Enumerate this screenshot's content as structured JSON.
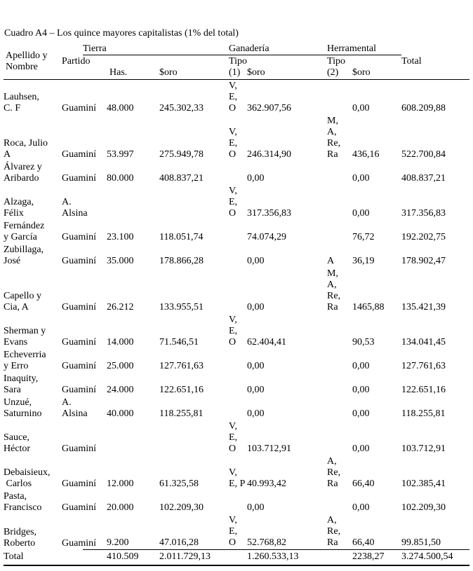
{
  "title": "Cuadro A4 – Los quince mayores capitalistas (1% del total)",
  "header": {
    "name": "Apellido y\nNombre",
    "partido": "Partido",
    "groups": [
      {
        "label": "Tierra",
        "sub": [
          "Has.",
          "$oro"
        ]
      },
      {
        "label": "Ganadería",
        "sub": [
          "Tipo\n(1)",
          "$oro"
        ]
      },
      {
        "label": "Herramental",
        "sub": [
          "Tipo\n(2)",
          "$oro"
        ]
      }
    ],
    "total": "Total"
  },
  "rows": [
    {
      "name": "Lauhsen,\nC. F",
      "partido": "Guaminí",
      "has": "48.000",
      "oro_tierra": "245.302,33",
      "tipo1": "V,\nE,\nO",
      "oro_ganaderia": "362.907,56",
      "tipo2": "",
      "oro_herramental": "0,00",
      "total": "608.209,88"
    },
    {
      "name": "Roca, Julio\nA",
      "partido": "Guaminí",
      "has": "53.997",
      "oro_tierra": "275.949,78",
      "tipo1": "V,\nE,\nO",
      "oro_ganaderia": "246.314,90",
      "tipo2": "M,\nA,\nRe,\nRa",
      "oro_herramental": "436,16",
      "total": "522.700,84"
    },
    {
      "name": "Álvarez y\nAribardo",
      "partido": "Guaminí",
      "has": "80.000",
      "oro_tierra": "408.837,21",
      "tipo1": "",
      "oro_ganaderia": "0,00",
      "tipo2": "",
      "oro_herramental": "0,00",
      "total": "408.837,21"
    },
    {
      "name": "Alzaga,\nFélix",
      "partido": "A.\nAlsina",
      "has": "",
      "oro_tierra": "",
      "tipo1": "V,\nE,\nO",
      "oro_ganaderia": "317.356,83",
      "tipo2": "",
      "oro_herramental": "0,00",
      "total": "317.356,83"
    },
    {
      "name": "Fernández\ny García",
      "partido": "Guaminí",
      "has": "23.100",
      "oro_tierra": "118.051,74",
      "tipo1": "",
      "oro_ganaderia": "74.074,29",
      "tipo2": "",
      "oro_herramental": "76,72",
      "total": "192.202,75"
    },
    {
      "name": "Zubillaga,\nJosé",
      "partido": "Guaminí",
      "has": "35.000",
      "oro_tierra": "178.866,28",
      "tipo1": "",
      "oro_ganaderia": "0,00",
      "tipo2": "A",
      "oro_herramental": "36,19",
      "total": "178.902,47"
    },
    {
      "name": "Capello y\nCia, A",
      "partido": "Guaminí",
      "has": "26.212",
      "oro_tierra": "133.955,51",
      "tipo1": "",
      "oro_ganaderia": "0,00",
      "tipo2": "M,\nA,\nRe,\nRa",
      "oro_herramental": "1465,88",
      "total": "135.421,39"
    },
    {
      "name": "Sherman y\nEvans",
      "partido": "Guaminí",
      "has": "14.000",
      "oro_tierra": "71.546,51",
      "tipo1": "V,\nE,\nO",
      "oro_ganaderia": "62.404,41",
      "tipo2": "",
      "oro_herramental": "90,53",
      "total": "134.041,45"
    },
    {
      "name": "Echeverria\ny Erro",
      "partido": "Guaminí",
      "has": "25.000",
      "oro_tierra": "127.761,63",
      "tipo1": "",
      "oro_ganaderia": "0,00",
      "tipo2": "",
      "oro_herramental": "0,00",
      "total": "127.761,63"
    },
    {
      "name": "Inaquity,\nSara",
      "partido": "Guaminí",
      "has": "24.000",
      "oro_tierra": "122.651,16",
      "tipo1": "",
      "oro_ganaderia": "0,00",
      "tipo2": "",
      "oro_herramental": "0,00",
      "total": "122.651,16"
    },
    {
      "name": "Unzué,\nSaturnino",
      "partido": "A.\nAlsina",
      "has": "40.000",
      "oro_tierra": "118.255,81",
      "tipo1": "",
      "oro_ganaderia": "0,00",
      "tipo2": "",
      "oro_herramental": "0,00",
      "total": "118.255,81"
    },
    {
      "name": "Sauce,\nHéctor",
      "partido": "Guaminí",
      "has": "",
      "oro_tierra": "",
      "tipo1": "V,\nE,\nO",
      "oro_ganaderia": "103.712,91",
      "tipo2": "",
      "oro_herramental": "0,00",
      "total": "103.712,91"
    },
    {
      "name": "Debaisieux,\n Carlos",
      "partido": "Guaminí",
      "has": "12.000",
      "oro_tierra": "61.325,58",
      "tipo1": "V,\nE, P",
      "oro_ganaderia": "40.993,42",
      "tipo2": "A,\nRe,\nRa",
      "oro_herramental": "66,40",
      "total": "102.385,41"
    },
    {
      "name": "Pasta,\nFrancisco",
      "partido": "Guaminí",
      "has": "20.000",
      "oro_tierra": "102.209,30",
      "tipo1": "",
      "oro_ganaderia": "0,00",
      "tipo2": "",
      "oro_herramental": "0,00",
      "total": "102.209,30"
    },
    {
      "name": "Bridges,\nRoberto",
      "partido": "Guaminí",
      "has": "9.200",
      "oro_tierra": "47.016,28",
      "tipo1": "V,\nE,\nO",
      "oro_ganaderia": "52.768,82",
      "tipo2": "A,\nRe,\nRa",
      "oro_herramental": "66,40",
      "total": "99.851,50"
    }
  ],
  "total_row": {
    "name": "Total",
    "partido": "",
    "has": "410.509",
    "oro_tierra": "2.011.729,13",
    "tipo1": "",
    "oro_ganaderia": "1.260.533,13",
    "tipo2": "",
    "oro_herramental": "2238,27",
    "total": "3.274.500,54"
  }
}
